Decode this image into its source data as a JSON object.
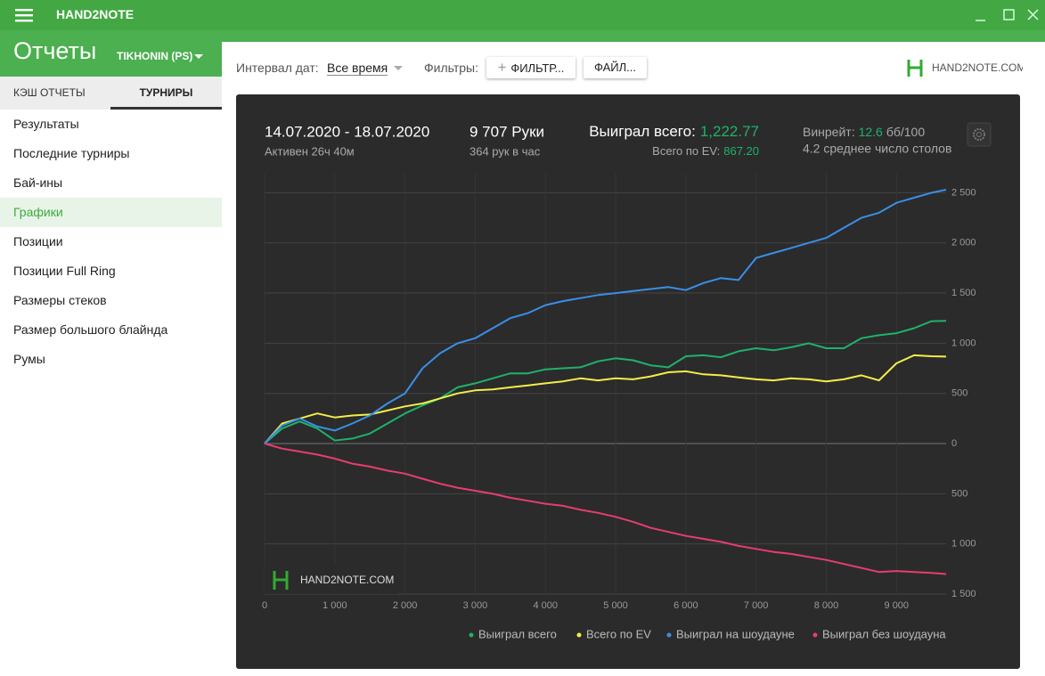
{
  "app": {
    "title": "HAND2NOTE"
  },
  "header": {
    "title": "Отчеты",
    "account": "TIKHONIN (PS)"
  },
  "tabs": [
    "КЭШ ОТЧЕТЫ",
    "ТУРНИРЫ"
  ],
  "menu": [
    "Результаты",
    "Последние турниры",
    "Бай-ины",
    "Графики",
    "Позиции",
    "Позиции Full Ring",
    "Размеры стеков",
    "Размер большого блайнда",
    "Румы"
  ],
  "toolbar": {
    "date_label": "Интервал дат:",
    "date_value": "Все время",
    "filters_label": "Фильтры:",
    "filter_button": "ФИЛЬТР...",
    "file_button": "ФАЙЛ...",
    "logo": "HAND2NOTE.COM"
  },
  "stats": {
    "dates": "14.07.2020 - 18.07.2020",
    "active": "Активен 26ч 40м",
    "hands": "9 707 Руки",
    "hands_per_hour": "364 рук в час",
    "won_label": "Выиграл всего:",
    "won_value": "1,222.77",
    "ev_label": "Всего по EV:",
    "ev_value": "867.20",
    "winrate_label": "Винрейт:",
    "winrate_value": "12.6",
    "winrate_unit": "бб/100",
    "tables": "4.2 среднее число столов"
  },
  "chart_data": {
    "type": "line",
    "watermark": "HAND2NOTE.COM",
    "x": [
      0,
      250,
      500,
      750,
      1000,
      1250,
      1500,
      1750,
      2000,
      2250,
      2500,
      2750,
      3000,
      3250,
      3500,
      3750,
      4000,
      4250,
      4500,
      4750,
      5000,
      5250,
      5500,
      5750,
      6000,
      6250,
      6500,
      6750,
      7000,
      7250,
      7500,
      7750,
      8000,
      8250,
      8500,
      8750,
      9000,
      9250,
      9500,
      9707
    ],
    "series": [
      {
        "name": "Выиграл всего",
        "color": "#1fb26b",
        "values": [
          0,
          150,
          220,
          150,
          30,
          50,
          100,
          200,
          300,
          380,
          450,
          560,
          600,
          650,
          700,
          700,
          740,
          750,
          760,
          820,
          850,
          830,
          780,
          760,
          870,
          880,
          860,
          920,
          950,
          930,
          960,
          1000,
          950,
          950,
          1050,
          1080,
          1100,
          1150,
          1220,
          1223
        ]
      },
      {
        "name": "Всего по EV",
        "color": "#f2ee4a",
        "values": [
          0,
          200,
          250,
          300,
          260,
          280,
          290,
          330,
          370,
          400,
          450,
          500,
          530,
          540,
          560,
          580,
          600,
          620,
          650,
          630,
          650,
          640,
          670,
          710,
          720,
          690,
          680,
          660,
          640,
          630,
          650,
          640,
          620,
          640,
          680,
          630,
          800,
          880,
          870,
          867
        ]
      },
      {
        "name": "Выиграл на шоудауне",
        "color": "#3a8fe8",
        "values": [
          0,
          180,
          250,
          170,
          130,
          200,
          280,
          400,
          500,
          750,
          900,
          1000,
          1050,
          1150,
          1250,
          1300,
          1380,
          1420,
          1450,
          1480,
          1500,
          1520,
          1540,
          1560,
          1530,
          1600,
          1650,
          1630,
          1850,
          1900,
          1950,
          2000,
          2050,
          2150,
          2250,
          2300,
          2400,
          2450,
          2500,
          2530
        ]
      },
      {
        "name": "Выиграл без шоудауна",
        "color": "#e83d6e",
        "values": [
          0,
          -50,
          -80,
          -110,
          -150,
          -200,
          -230,
          -270,
          -300,
          -350,
          -400,
          -440,
          -470,
          -500,
          -540,
          -570,
          -600,
          -620,
          -660,
          -690,
          -730,
          -780,
          -840,
          -880,
          -920,
          -950,
          -980,
          -1020,
          -1050,
          -1080,
          -1100,
          -1130,
          -1160,
          -1200,
          -1240,
          -1280,
          -1270,
          -1280,
          -1290,
          -1300
        ]
      }
    ],
    "xlim": [
      0,
      9707
    ],
    "ylim": [
      -1500,
      2690
    ],
    "xticks": [
      0,
      {
        "value": 1000,
        "label": "1 000"
      },
      {
        "value": 2000,
        "label": "2 000"
      },
      {
        "value": 3000,
        "label": "3 000"
      },
      {
        "value": 4000,
        "label": "4 000"
      },
      {
        "value": 5000,
        "label": "5 000"
      },
      {
        "value": 6000,
        "label": "6 000"
      },
      {
        "value": 7000,
        "label": "7 000"
      },
      {
        "value": 8000,
        "label": "8 000"
      },
      {
        "value": 9000,
        "label": "9 000"
      }
    ],
    "yticks": [
      {
        "value": -1500,
        "label": "1 500"
      },
      {
        "value": -1000,
        "label": "1 000"
      },
      {
        "value": -500,
        "label": "500"
      },
      0,
      500,
      {
        "value": 1000,
        "label": "1 000"
      },
      {
        "value": 1500,
        "label": "1 500"
      },
      {
        "value": 2000,
        "label": "2 000"
      },
      {
        "value": 2500,
        "label": "2 500"
      }
    ],
    "grid": true
  }
}
